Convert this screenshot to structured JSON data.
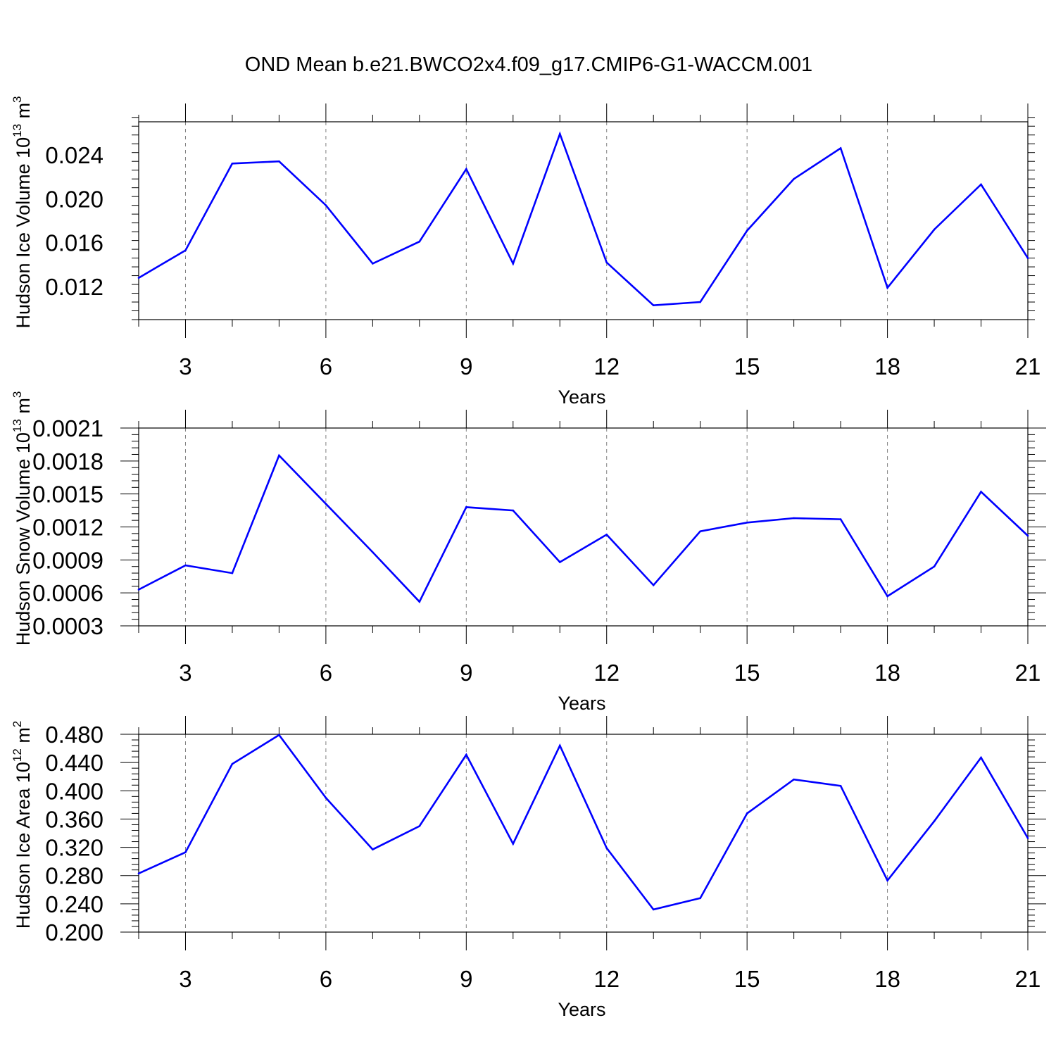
{
  "title": "OND Mean b.e21.BWCO2x4.f09_g17.CMIP6-G1-WACCM.001",
  "colors": {
    "series": "#0000ff",
    "axis": "#000000",
    "grid": "#808080"
  },
  "chart_data": [
    {
      "type": "line",
      "ylabel": "Hudson Ice Volume 10",
      "ylabel_exp": "13",
      "ylabel_unit": "m",
      "ylabel_unit_exp": "3",
      "xlabel": "Years",
      "xlim": [
        2,
        21
      ],
      "ylim": [
        0.009,
        0.027
      ],
      "xticks": [
        3,
        6,
        9,
        12,
        15,
        18,
        21
      ],
      "yticks": [
        0.012,
        0.016,
        0.02,
        0.024
      ],
      "ytick_labels": [
        "0.012",
        "0.016",
        "0.020",
        "0.024"
      ],
      "x": [
        2,
        3,
        4,
        5,
        6,
        7,
        8,
        9,
        10,
        11,
        12,
        13,
        14,
        15,
        16,
        17,
        18,
        19,
        20,
        21
      ],
      "values": [
        0.0128,
        0.0153,
        0.0232,
        0.0234,
        0.0194,
        0.0141,
        0.0161,
        0.0227,
        0.0141,
        0.0259,
        0.0142,
        0.0103,
        0.0106,
        0.0171,
        0.0218,
        0.0246,
        0.0119,
        0.0172,
        0.0213,
        0.0146
      ],
      "grid": "vertical dashed at major x ticks",
      "legend": "none"
    },
    {
      "type": "line",
      "ylabel": "Hudson Snow Volume 10",
      "ylabel_exp": "13",
      "ylabel_unit": "m",
      "ylabel_unit_exp": "3",
      "xlabel": "Years",
      "xlim": [
        2,
        21
      ],
      "ylim": [
        0.0003,
        0.0021
      ],
      "xticks": [
        3,
        6,
        9,
        12,
        15,
        18,
        21
      ],
      "yticks": [
        0.0003,
        0.0006,
        0.0009,
        0.0012,
        0.0015,
        0.0018,
        0.0021
      ],
      "ytick_labels": [
        "0.0003",
        "0.0006",
        "0.0009",
        "0.0012",
        "0.0015",
        "0.0018",
        "0.0021"
      ],
      "x": [
        2,
        3,
        4,
        5,
        6,
        7,
        8,
        9,
        10,
        11,
        12,
        13,
        14,
        15,
        16,
        17,
        18,
        19,
        20,
        21
      ],
      "values": [
        0.00063,
        0.00085,
        0.00078,
        0.00185,
        0.00141,
        0.00097,
        0.00052,
        0.00138,
        0.00135,
        0.00088,
        0.00113,
        0.00067,
        0.00116,
        0.00124,
        0.00128,
        0.00127,
        0.00057,
        0.00084,
        0.00152,
        0.00112
      ],
      "grid": "vertical dashed at major x ticks",
      "legend": "none"
    },
    {
      "type": "line",
      "ylabel": "Hudson Ice Area 10",
      "ylabel_exp": "12",
      "ylabel_unit": "m",
      "ylabel_unit_exp": "2",
      "xlabel": "Years",
      "xlim": [
        2,
        21
      ],
      "ylim": [
        0.2,
        0.48
      ],
      "xticks": [
        3,
        6,
        9,
        12,
        15,
        18,
        21
      ],
      "yticks": [
        0.2,
        0.24,
        0.28,
        0.32,
        0.36,
        0.4,
        0.44,
        0.48
      ],
      "ytick_labels": [
        "0.200",
        "0.240",
        "0.280",
        "0.320",
        "0.360",
        "0.400",
        "0.440",
        "0.480"
      ],
      "x": [
        2,
        3,
        4,
        5,
        6,
        7,
        8,
        9,
        10,
        11,
        12,
        13,
        14,
        15,
        16,
        17,
        18,
        19,
        20,
        21
      ],
      "values": [
        0.283,
        0.313,
        0.438,
        0.479,
        0.39,
        0.317,
        0.35,
        0.451,
        0.325,
        0.464,
        0.319,
        0.232,
        0.248,
        0.368,
        0.416,
        0.407,
        0.273,
        0.357,
        0.447,
        0.333
      ],
      "grid": "vertical dashed at major x ticks",
      "legend": "none"
    }
  ]
}
